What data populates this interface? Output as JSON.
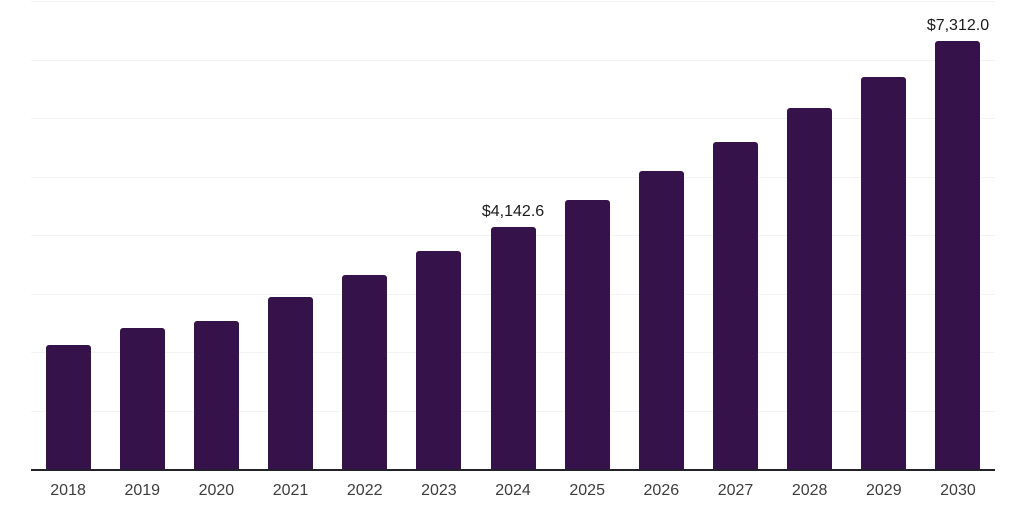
{
  "colors": {
    "background": "#ffffff",
    "bar": "#35134A",
    "gridline": "#f4f4f4",
    "axis_line": "#232129",
    "tick_label": "#3d3d3d",
    "data_label": "#1b1b1b"
  },
  "chart_data": {
    "type": "bar",
    "title": "",
    "xlabel": "",
    "ylabel": "",
    "categories": [
      "2018",
      "2019",
      "2020",
      "2021",
      "2022",
      "2023",
      "2024",
      "2025",
      "2026",
      "2027",
      "2028",
      "2029",
      "2030"
    ],
    "values": [
      2125,
      2410,
      2525,
      2940,
      3310,
      3720,
      4142.6,
      4605,
      5090,
      5585,
      6170,
      6705,
      7312.0
    ],
    "data_labels": [
      "",
      "",
      "",
      "",
      "",
      "",
      "$4,142.6",
      "",
      "",
      "",
      "",
      "",
      "$7,312.0"
    ],
    "ylim": [
      0,
      8000
    ],
    "grid_step": 1000,
    "grid": true,
    "legend": false,
    "y_axis_labels_visible": false
  }
}
